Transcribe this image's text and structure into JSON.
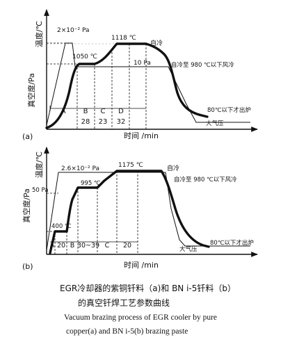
{
  "figure_a": {
    "panel_label": "(a)",
    "y_label_temperature": "温度/℃",
    "y_label_vacuum": "真空度/Pa",
    "x_label": "时间 /min",
    "vacuum_high": "2×10⁻² Pa",
    "vacuum_low": "10 Pa",
    "temp_1": "1050 ℃",
    "temp_2": "1118 ℃",
    "note_self_cool": "自冷",
    "note_fan_cool": "自冷至 980 ℃以下风冷",
    "note_discharge": "80℃以下才出炉",
    "note_atmos": "大气压",
    "stages": [
      {
        "letter": "A",
        "duration": ""
      },
      {
        "letter": "B",
        "duration": "28"
      },
      {
        "letter": "C",
        "duration": "23"
      },
      {
        "letter": "D",
        "duration": "32"
      }
    ]
  },
  "figure_b": {
    "panel_label": "(b)",
    "y_label_temperature": "温度/℃",
    "y_label_vacuum": "真空度/Pa",
    "x_label": "时间 /min",
    "vacuum_high": "2.6×10⁻² Pa",
    "vacuum_low": "50 Pa",
    "temp_1": "400 ℃",
    "temp_2": "995 ℃",
    "temp_3": "1175 ℃",
    "note_self_cool": "自冷",
    "note_fan_cool": "自冷至 980 ℃以下风冷",
    "note_discharge": "80℃以下才出炉",
    "note_atmos": "大气压",
    "stages": [
      {
        "letter": "A",
        "duration": "20"
      },
      {
        "letter": "B",
        "duration": "30~39"
      },
      {
        "letter": "C",
        "duration": ""
      },
      {
        "letter": "",
        "duration": "20"
      }
    ]
  },
  "caption": {
    "zh_line1": "EGR冷却器的紫铜钎料（a)和 BN i-5钎料（b）",
    "zh_line2": "的真空钎焊工艺参数曲线",
    "en_line1": "Vacuum  brazing process of EGR  cooler by pure",
    "en_line2": "copper(a) and BN i-5(b) brazing paste"
  }
}
